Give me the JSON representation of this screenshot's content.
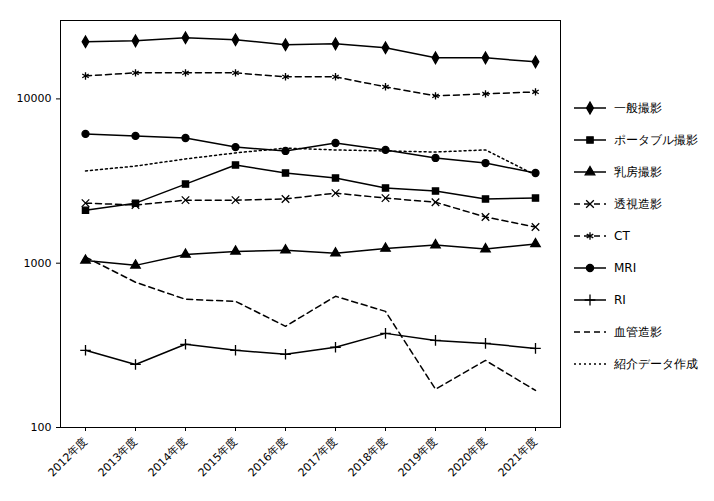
{
  "chart_data": {
    "type": "line",
    "log": "y",
    "legend": "right",
    "categories": [
      "2012年度",
      "2013年度",
      "2014年度",
      "2015年度",
      "2016年度",
      "2017年度",
      "2018年度",
      "2019年度",
      "2020年度",
      "2021年度"
    ],
    "ylim": [
      100,
      30000
    ],
    "yticks": [
      100,
      1000,
      10000
    ],
    "series": [
      {
        "name": "一般撮影",
        "color": "#000000",
        "marker": "diamond",
        "line_style": "solid",
        "values": [
          22260,
          22570,
          23550,
          22900,
          21350,
          21640,
          20470,
          17780,
          17780,
          16810
        ]
      },
      {
        "name": "ポータブル撮影",
        "color": "#000000",
        "marker": "square",
        "line_style": "solid",
        "values": [
          2100,
          2320,
          3030,
          3960,
          3540,
          3300,
          2870,
          2750,
          2460,
          2490
        ]
      },
      {
        "name": "乳房撮影",
        "color": "#000000",
        "marker": "triangle",
        "line_style": "solid",
        "values": [
          1040,
          970,
          1130,
          1180,
          1200,
          1150,
          1230,
          1290,
          1220,
          1310
        ]
      },
      {
        "name": "透視造影",
        "color": "#000000",
        "marker": "times",
        "line_style": "dashed",
        "values": [
          2320,
          2260,
          2420,
          2420,
          2460,
          2670,
          2490,
          2350,
          1910,
          1660
        ]
      },
      {
        "name": "CT",
        "color": "#000000",
        "marker": "asterisk",
        "line_style": "dashed",
        "values": [
          13800,
          14400,
          14400,
          14400,
          13620,
          13620,
          11840,
          10430,
          10730,
          11030
        ]
      },
      {
        "name": "MRI",
        "color": "#000000",
        "marker": "circle",
        "line_style": "solid",
        "values": [
          6120,
          5950,
          5780,
          5090,
          4820,
          5390,
          4890,
          4370,
          4070,
          3540
        ]
      },
      {
        "name": "RI",
        "color": "#000000",
        "marker": "plus",
        "line_style": "solid",
        "values": [
          295,
          242,
          321,
          295,
          279,
          308,
          374,
          339,
          325,
          303
        ]
      },
      {
        "name": "血管造影",
        "color": "#000000",
        "marker": "none",
        "line_style": "dashed",
        "values": [
          1090,
          766,
          603,
          586,
          413,
          629,
          509,
          171,
          256,
          168
        ]
      },
      {
        "name": "紹介データ作成",
        "color": "#000000",
        "marker": "none",
        "line_style": "dotted",
        "values": [
          3640,
          3900,
          4310,
          4690,
          5020,
          4890,
          4820,
          4750,
          4890,
          3440
        ]
      }
    ]
  }
}
